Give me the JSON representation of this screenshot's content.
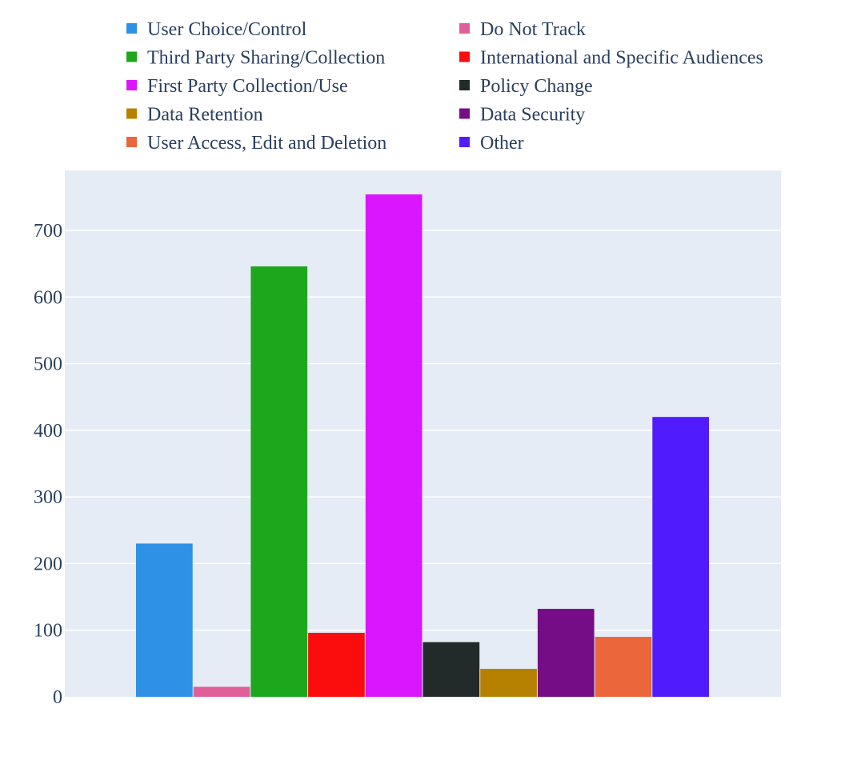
{
  "chart_data": {
    "type": "bar",
    "title": "",
    "xlabel": "",
    "ylabel": "",
    "ylim": [
      0,
      790
    ],
    "yticks": [
      0,
      100,
      200,
      300,
      400,
      500,
      600,
      700
    ],
    "grid": true,
    "legend_position": "top",
    "plot_background": "#e5ecf6",
    "series": [
      {
        "name": "User Choice/Control",
        "value": 230,
        "color": "#2e91e5"
      },
      {
        "name": "Do Not Track",
        "value": 15,
        "color": "#e15f99"
      },
      {
        "name": "Third Party Sharing/Collection",
        "value": 646,
        "color": "#1ca71c"
      },
      {
        "name": "International and Specific Audiences",
        "value": 96,
        "color": "#fb0d0d"
      },
      {
        "name": "First Party Collection/Use",
        "value": 754,
        "color": "#da16ff"
      },
      {
        "name": "Policy Change",
        "value": 82,
        "color": "#222a2a"
      },
      {
        "name": "Data Retention",
        "value": 42,
        "color": "#b68100"
      },
      {
        "name": "Data Security",
        "value": 132,
        "color": "#750d86"
      },
      {
        "name": "User Access, Edit and Deletion",
        "value": 90,
        "color": "#eb663b"
      },
      {
        "name": "Other",
        "value": 420,
        "color": "#511cfb"
      }
    ]
  }
}
